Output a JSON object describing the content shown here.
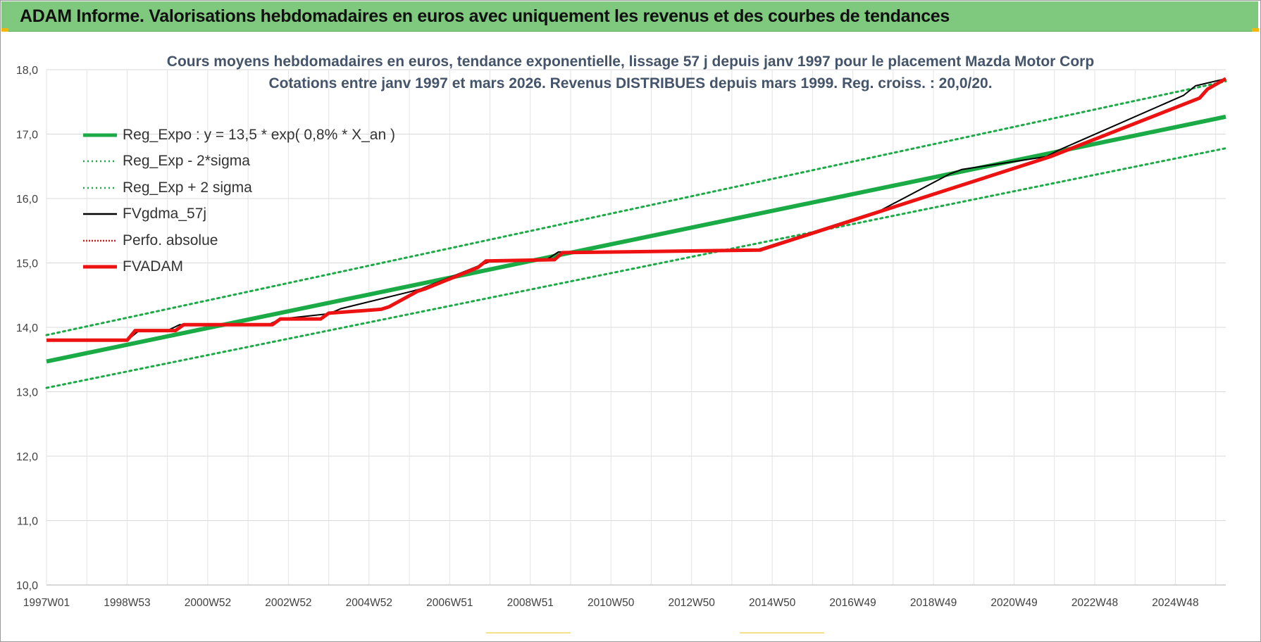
{
  "header": {
    "title": "ADAM Informe. Valorisations hebdomadaires en euros avec uniquement les revenus et des courbes de tendances"
  },
  "chart_data": {
    "type": "line",
    "title": "Cours moyens hebdomadaires en euros, tendance exponentielle, lissage 57 j depuis janv 1997 pour le placement Mazda Motor Corp",
    "subtitle": "Cotations entre janv 1997 et mars 2026. Revenus DISTRIBUES depuis mars 1999. Reg. croiss. : 20,0/20.",
    "xlabel": "",
    "ylabel": "",
    "x_range": [
      1997.0,
      2026.25
    ],
    "ylim": [
      10,
      18
    ],
    "y_ticks": [
      "10,0",
      "11,0",
      "12,0",
      "13,0",
      "14,0",
      "15,0",
      "16,0",
      "17,0",
      "18,0"
    ],
    "x_ticks": [
      {
        "label": "1997W01",
        "x": 1997.0
      },
      {
        "label": "1998W53",
        "x": 1999.0
      },
      {
        "label": "2000W52",
        "x": 2001.0
      },
      {
        "label": "2002W52",
        "x": 2003.0
      },
      {
        "label": "2004W52",
        "x": 2005.0
      },
      {
        "label": "2006W51",
        "x": 2007.0
      },
      {
        "label": "2008W51",
        "x": 2009.0
      },
      {
        "label": "2010W50",
        "x": 2011.0
      },
      {
        "label": "2012W50",
        "x": 2013.0
      },
      {
        "label": "2014W50",
        "x": 2015.0
      },
      {
        "label": "2016W49",
        "x": 2017.0
      },
      {
        "label": "2018W49",
        "x": 2019.0
      },
      {
        "label": "2020W49",
        "x": 2021.0
      },
      {
        "label": "2022W48",
        "x": 2023.0
      },
      {
        "label": "2024W48",
        "x": 2025.0
      }
    ],
    "grid": true,
    "legend_position": "top-left",
    "series": [
      {
        "name": "Reg_Expo : y = 13,5 * exp( 0,8% *  X_an )",
        "color": "#1aab46",
        "style": "solid-thick",
        "x": [
          1997.0,
          2026.25
        ],
        "y": [
          13.47,
          17.27
        ]
      },
      {
        "name": "Reg_Exp - 2*sigma",
        "color": "#1aab46",
        "style": "dotted",
        "x": [
          1997.0,
          2026.25
        ],
        "y": [
          13.06,
          16.78
        ]
      },
      {
        "name": "Reg_Exp + 2 sigma",
        "color": "#1aab46",
        "style": "dotted",
        "x": [
          1997.0,
          2026.25
        ],
        "y": [
          13.88,
          17.82
        ]
      },
      {
        "name": "FVgdma_57j",
        "color": "#000000",
        "style": "solid-thin",
        "x": [
          1997.0,
          1999.0,
          1999.3,
          2000.0,
          2000.3,
          2002.5,
          2002.8,
          2004.0,
          2004.3,
          2006.0,
          2006.3,
          2007.7,
          2008.0,
          2009.4,
          2009.7,
          2014.6,
          2015.0,
          2017.4,
          2017.7,
          2019.4,
          2019.7,
          2021.8,
          2022.1,
          2025.2,
          2025.5,
          2026.25
        ],
        "y": [
          13.8,
          13.8,
          13.95,
          13.95,
          14.04,
          14.04,
          14.13,
          14.21,
          14.29,
          14.55,
          14.6,
          14.95,
          15.02,
          15.05,
          15.17,
          15.2,
          15.28,
          15.76,
          15.82,
          16.38,
          16.45,
          16.65,
          16.75,
          17.6,
          17.75,
          17.86
        ]
      },
      {
        "name": "Perfo. absolue",
        "color": "#d11a1a",
        "style": "dotted",
        "x": [],
        "y": []
      },
      {
        "name": "FVADAM",
        "color": "#ee1111",
        "style": "solid-thick",
        "x": [
          1997.0,
          1999.0,
          1999.2,
          2000.2,
          2000.4,
          2002.6,
          2002.8,
          2003.8,
          2004.0,
          2005.3,
          2005.5,
          2006.2,
          2006.4,
          2007.7,
          2007.9,
          2009.6,
          2009.8,
          2014.7,
          2014.9,
          2021.9,
          2022.1,
          2025.6,
          2025.8,
          2026.25
        ],
        "y": [
          13.8,
          13.8,
          13.95,
          13.95,
          14.04,
          14.04,
          14.13,
          14.13,
          14.22,
          14.28,
          14.32,
          14.56,
          14.6,
          14.93,
          15.03,
          15.05,
          15.16,
          15.2,
          15.24,
          16.65,
          16.7,
          17.56,
          17.7,
          17.86
        ]
      }
    ]
  }
}
